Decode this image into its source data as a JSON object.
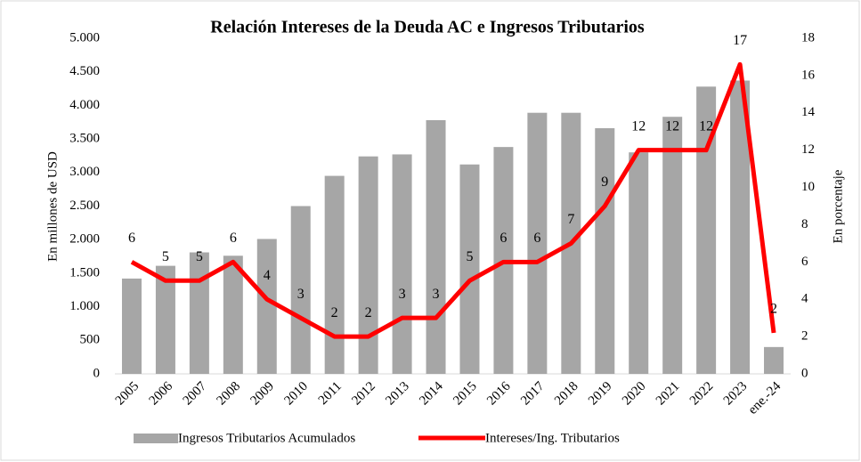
{
  "chart_data": {
    "type": "bar-line",
    "title": "Relación Intereses de la Deuda AC e Ingresos Tributarios",
    "ylabel": "En millones de USD",
    "y2label": "En porcentaje",
    "categories": [
      "2005",
      "2006",
      "2007",
      "2008",
      "2009",
      "2010",
      "2011",
      "2012",
      "2013",
      "2014",
      "2015",
      "2016",
      "2017",
      "2018",
      "2019",
      "2020",
      "2021",
      "2022",
      "2023",
      "ene.-24"
    ],
    "series": [
      {
        "name": "Ingresos Tributarios Acumulados",
        "type": "bar",
        "color": "#a6a6a6",
        "values": [
          1420,
          1610,
          1810,
          1760,
          2010,
          2500,
          2950,
          3240,
          3270,
          3780,
          3120,
          3380,
          3890,
          3890,
          3660,
          3300,
          3830,
          4280,
          4370,
          400
        ]
      },
      {
        "name": "Intereses/Ing. Tributarios",
        "type": "line",
        "axis": "y2",
        "color": "#ff0000",
        "values": [
          6,
          5,
          5,
          6,
          4,
          3,
          2,
          2,
          3,
          3,
          5,
          6,
          6,
          7,
          9,
          12,
          12,
          12,
          16.6,
          2.2
        ],
        "value_labels": [
          "6",
          "5",
          "5",
          "6",
          "4",
          "3",
          "2",
          "2",
          "3",
          "3",
          "5",
          "6",
          "6",
          "7",
          "9",
          "12",
          "12",
          "12",
          "17",
          "2"
        ]
      }
    ],
    "ylim": [
      0,
      5000
    ],
    "yticks": [
      0,
      500,
      {
        "value": 1000,
        "label": "1.000"
      },
      {
        "value": 1500,
        "label": "1.500"
      },
      {
        "value": 2000,
        "label": "2.000"
      },
      {
        "value": 2500,
        "label": "2.500"
      },
      {
        "value": 3000,
        "label": "3.000"
      },
      {
        "value": 3500,
        "label": "3.500"
      },
      {
        "value": 4000,
        "label": "4.000"
      },
      {
        "value": 4500,
        "label": "4.500"
      },
      {
        "value": 5000,
        "label": "5.000"
      }
    ],
    "y2lim": [
      0,
      18
    ],
    "y2ticks": [
      0,
      2,
      4,
      6,
      8,
      10,
      12,
      14,
      16,
      18
    ],
    "legend": "bottom"
  }
}
